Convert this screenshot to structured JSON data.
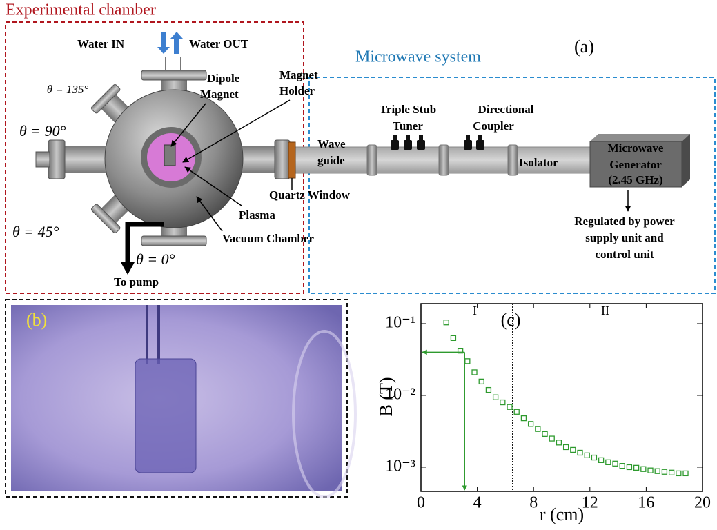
{
  "diagram": {
    "chamber_title": "Experimental chamber",
    "microwave_title": "Microwave system",
    "panel_label": "(a)",
    "water_in": "Water IN",
    "water_out": "Water OUT",
    "theta_135": "θ = 135°",
    "theta_90": "θ = 90°",
    "theta_45": "θ = 45°",
    "theta_0": "θ = 0°",
    "dipole_magnet": [
      "Dipole",
      "Magnet"
    ],
    "magnet_holder": [
      "Magnet",
      "Holder"
    ],
    "triple_stub_tuner": [
      "Triple Stub",
      "Tuner"
    ],
    "directional_coupler": [
      "Directional",
      "Coupler"
    ],
    "wave_guide": [
      "Wave",
      "guide"
    ],
    "isolator": "Isolator",
    "generator": [
      "Microwave",
      "Generator",
      "(2.45 GHz)"
    ],
    "quartz_window": "Quartz Window",
    "plasma": "Plasma",
    "vacuum_chamber": "Vacuum Chamber",
    "to_pump": "To pump",
    "regulated": [
      "Regulated by power",
      "supply unit and",
      "control unit"
    ]
  },
  "photo": {
    "panel_label": "(b)"
  },
  "chart_data": {
    "type": "scatter",
    "panel_label": "(c)",
    "x_label": "r (cm)",
    "y_label": "B (T)",
    "region_labels": [
      "I",
      "II"
    ],
    "x": [
      1.8,
      2.3,
      2.8,
      3.3,
      3.8,
      4.3,
      4.8,
      5.3,
      5.8,
      6.3,
      6.8,
      7.3,
      7.8,
      8.3,
      8.8,
      9.3,
      9.8,
      10.3,
      10.8,
      11.3,
      11.8,
      12.3,
      12.8,
      13.3,
      13.8,
      14.3,
      14.8,
      15.3,
      15.8,
      16.3,
      16.8,
      17.3,
      17.8,
      18.3,
      18.8
    ],
    "series": [
      {
        "color": "#2e9a2e",
        "values": [
          0.104,
          0.063,
          0.042,
          0.03,
          0.021,
          0.0156,
          0.0119,
          0.0094,
          0.008,
          0.0069,
          0.0059,
          0.0048,
          0.004,
          0.0034,
          0.0029,
          0.0025,
          0.0022,
          0.0019,
          0.00174,
          0.00159,
          0.00146,
          0.00136,
          0.00125,
          0.00117,
          0.00112,
          0.00104,
          0.001,
          0.00098,
          0.00094,
          0.0009,
          0.00088,
          0.00086,
          0.00084,
          0.00082,
          0.00082
        ]
      }
    ],
    "xlim": [
      0,
      20
    ],
    "xticks": [
      0,
      4,
      8,
      12,
      16,
      20
    ],
    "ylim": [
      0.00046,
      0.19
    ],
    "yticks": [
      {
        "value": 0.001,
        "label": "10⁻³"
      },
      {
        "value": 0.01,
        "label": "10⁻²"
      },
      {
        "value": 0.1,
        "label": "10⁻¹"
      }
    ],
    "log_y": true,
    "region_boundary_x": 6.5,
    "arrow_point": {
      "x": 3.1,
      "y": 0.04
    }
  }
}
